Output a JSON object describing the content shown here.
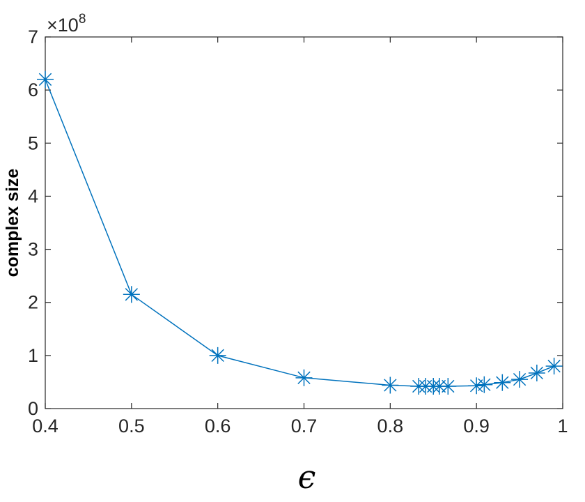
{
  "chart_data": {
    "type": "line",
    "title": "",
    "xlabel": "ϵ",
    "ylabel": "complex size",
    "y_exponent_label": "×10",
    "y_exponent": "8",
    "xlim": [
      0.4,
      1.0
    ],
    "ylim": [
      0,
      7
    ],
    "xticks": [
      0.4,
      0.5,
      0.6,
      0.7,
      0.8,
      0.9,
      1.0
    ],
    "xtick_labels": [
      "0.4",
      "0.5",
      "0.6",
      "0.7",
      "0.8",
      "0.9",
      "1"
    ],
    "yticks": [
      0,
      1,
      2,
      3,
      4,
      5,
      6,
      7
    ],
    "ytick_labels": [
      "0",
      "1",
      "2",
      "3",
      "4",
      "5",
      "6",
      "7"
    ],
    "grid": false,
    "marker": "asterisk",
    "color": "#0072BD",
    "series": [
      {
        "x": [
          0.4,
          0.5,
          0.6,
          0.7,
          0.8,
          0.833,
          0.841,
          0.85,
          0.857,
          0.867,
          0.9,
          0.909,
          0.93,
          0.95,
          0.97,
          0.99
        ],
        "y": [
          6.2,
          2.15,
          1.0,
          0.58,
          0.44,
          0.42,
          0.42,
          0.42,
          0.42,
          0.42,
          0.43,
          0.45,
          0.49,
          0.55,
          0.67,
          0.8
        ]
      }
    ]
  }
}
